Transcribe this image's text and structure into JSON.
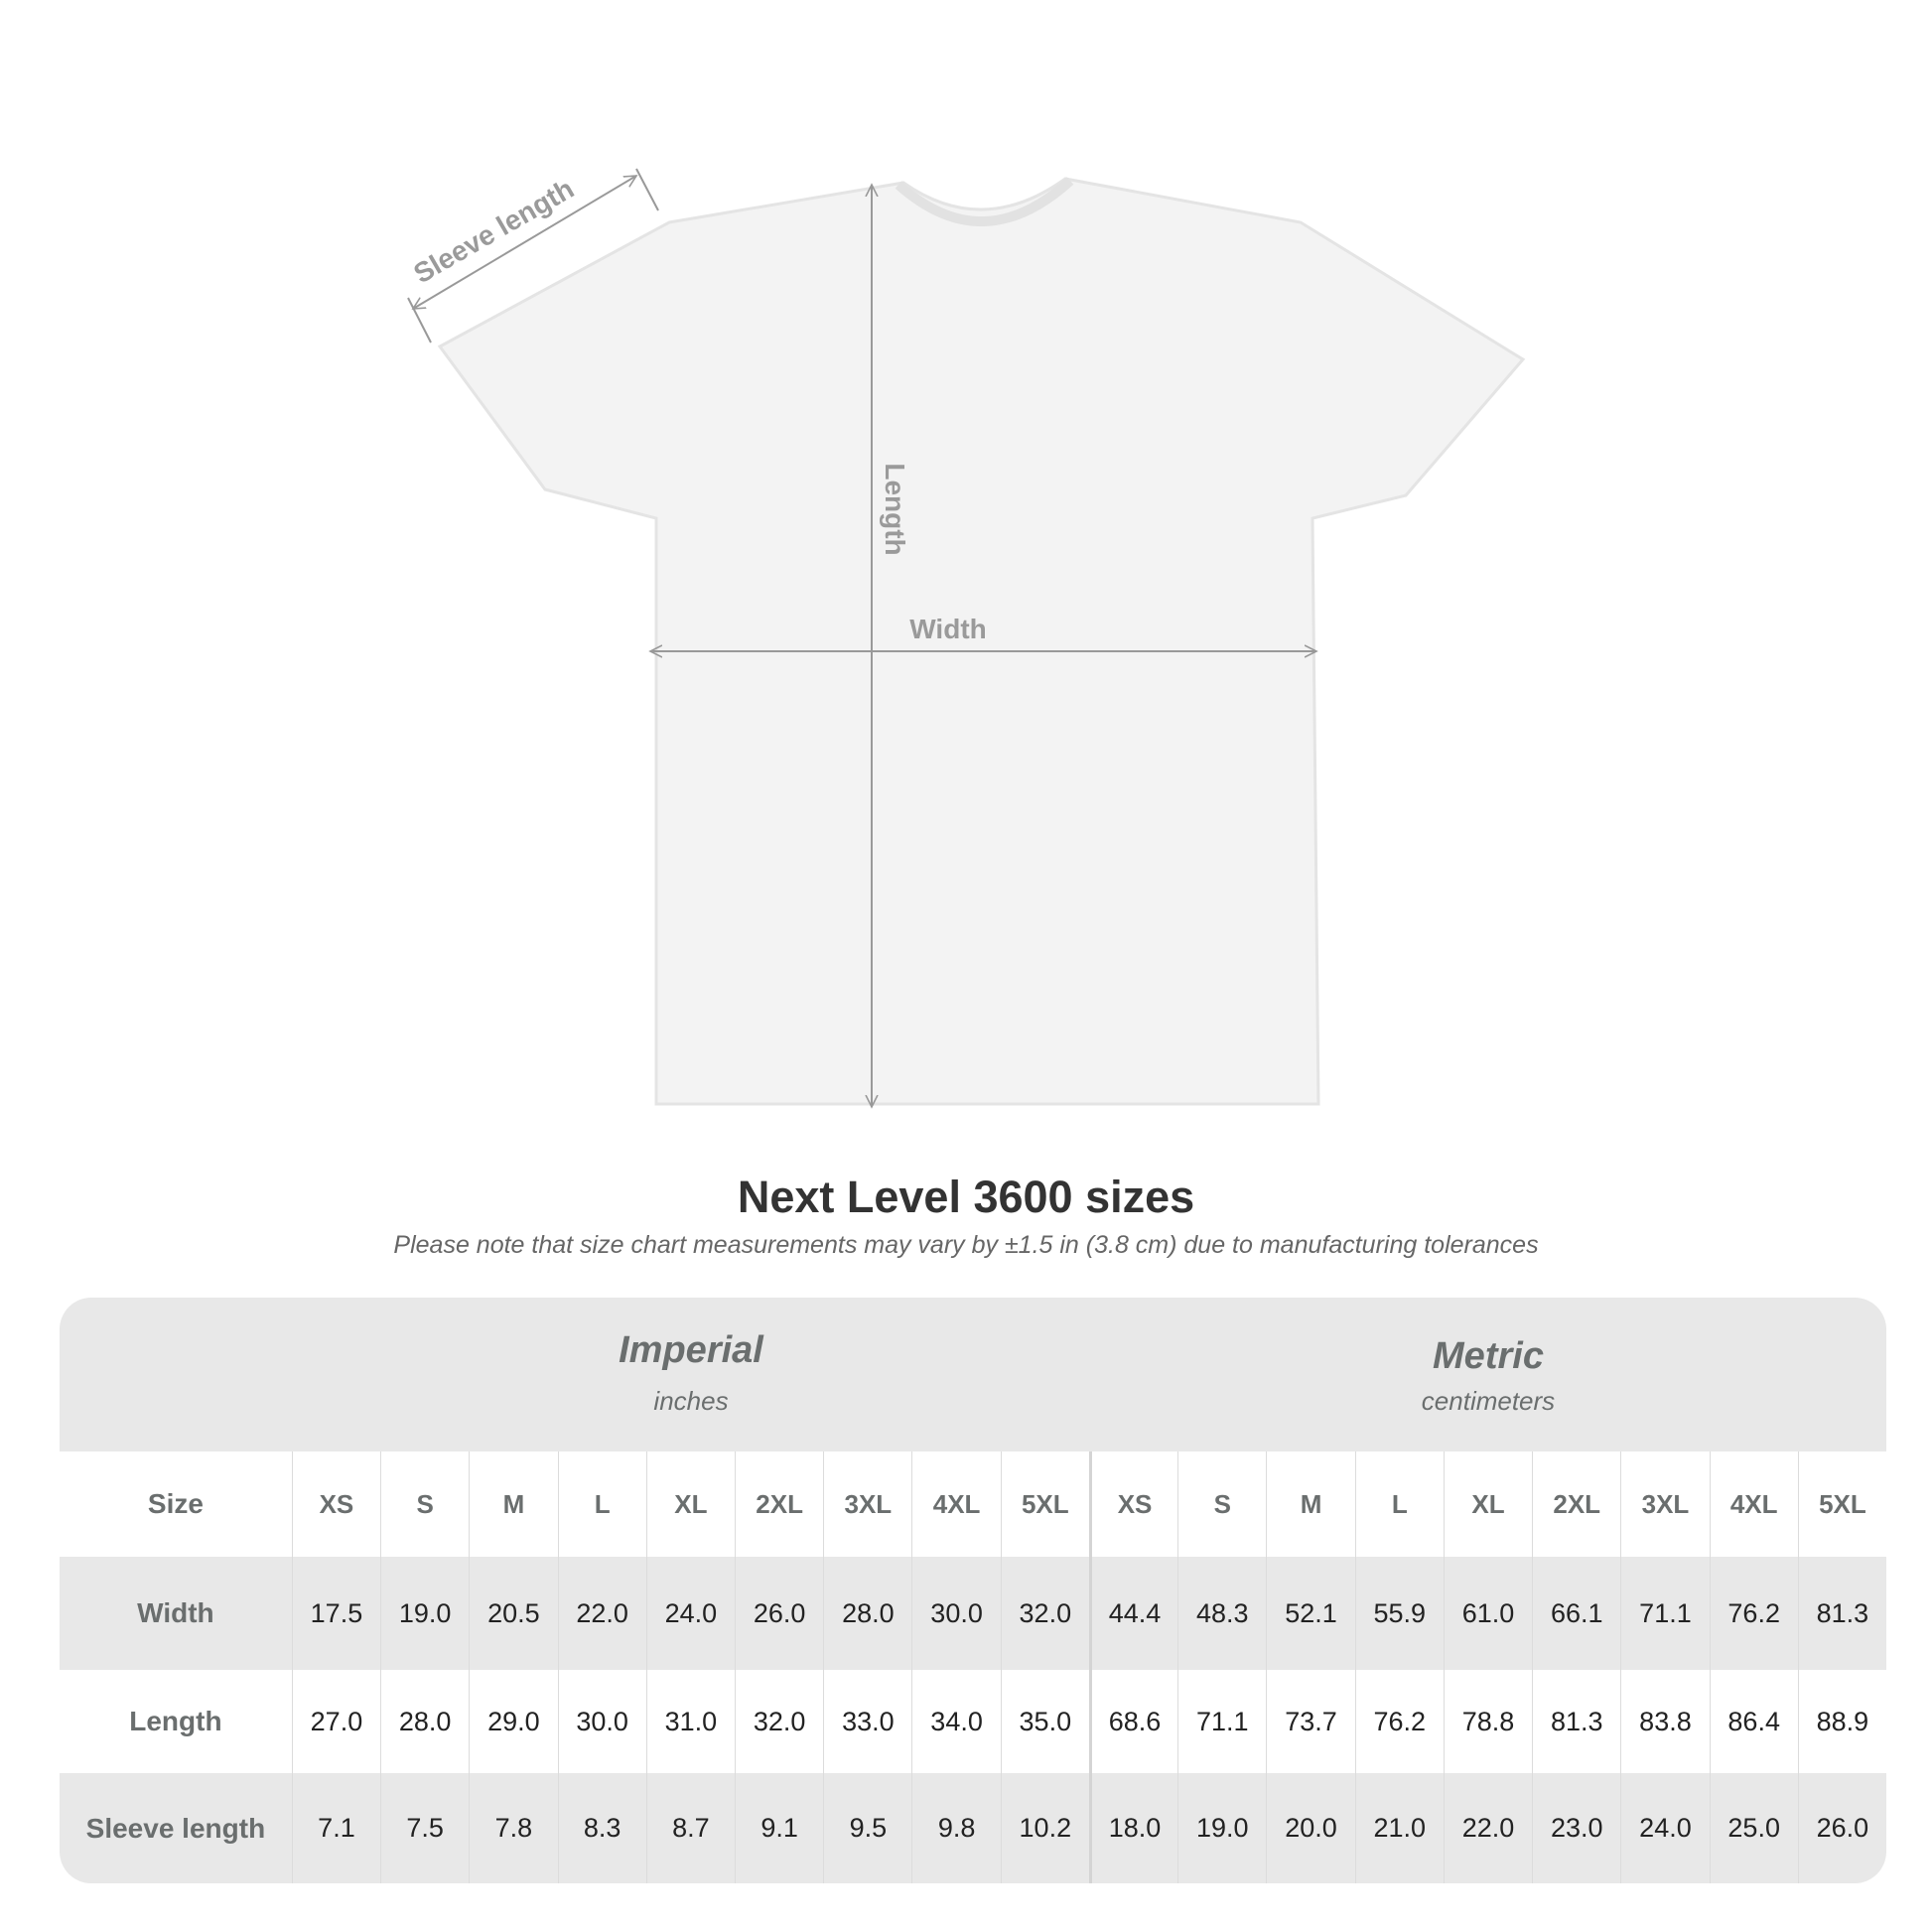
{
  "diagram": {
    "labels": {
      "sleeve": "Sleeve length",
      "length": "Length",
      "width": "Width"
    },
    "shirt_color": "#f3f3f3",
    "arrow_color": "#999999"
  },
  "title": "Next Level 3600 sizes",
  "subtitle": "Please note that size chart measurements may vary by ±1.5 in (3.8 cm) due to manufacturing tolerances",
  "table": {
    "imperial": {
      "name": "Imperial",
      "unit": "inches"
    },
    "metric": {
      "name": "Metric",
      "unit": "centimeters"
    },
    "size_label": "Size",
    "sizes": [
      "XS",
      "S",
      "M",
      "L",
      "XL",
      "2XL",
      "3XL",
      "4XL",
      "5XL"
    ],
    "rows": [
      {
        "label": "Width",
        "imperial": [
          "17.5",
          "19.0",
          "20.5",
          "22.0",
          "24.0",
          "26.0",
          "28.0",
          "30.0",
          "32.0"
        ],
        "metric": [
          "44.4",
          "48.3",
          "52.1",
          "55.9",
          "61.0",
          "66.1",
          "71.1",
          "76.2",
          "81.3"
        ]
      },
      {
        "label": "Length",
        "imperial": [
          "27.0",
          "28.0",
          "29.0",
          "30.0",
          "31.0",
          "32.0",
          "33.0",
          "34.0",
          "35.0"
        ],
        "metric": [
          "68.6",
          "71.1",
          "73.7",
          "76.2",
          "78.8",
          "81.3",
          "83.8",
          "86.4",
          "88.9"
        ]
      },
      {
        "label": "Sleeve length",
        "imperial": [
          "7.1",
          "7.5",
          "7.8",
          "8.3",
          "8.7",
          "9.1",
          "9.5",
          "9.8",
          "10.2"
        ],
        "metric": [
          "18.0",
          "19.0",
          "20.0",
          "21.0",
          "22.0",
          "23.0",
          "24.0",
          "25.0",
          "26.0"
        ]
      }
    ]
  }
}
